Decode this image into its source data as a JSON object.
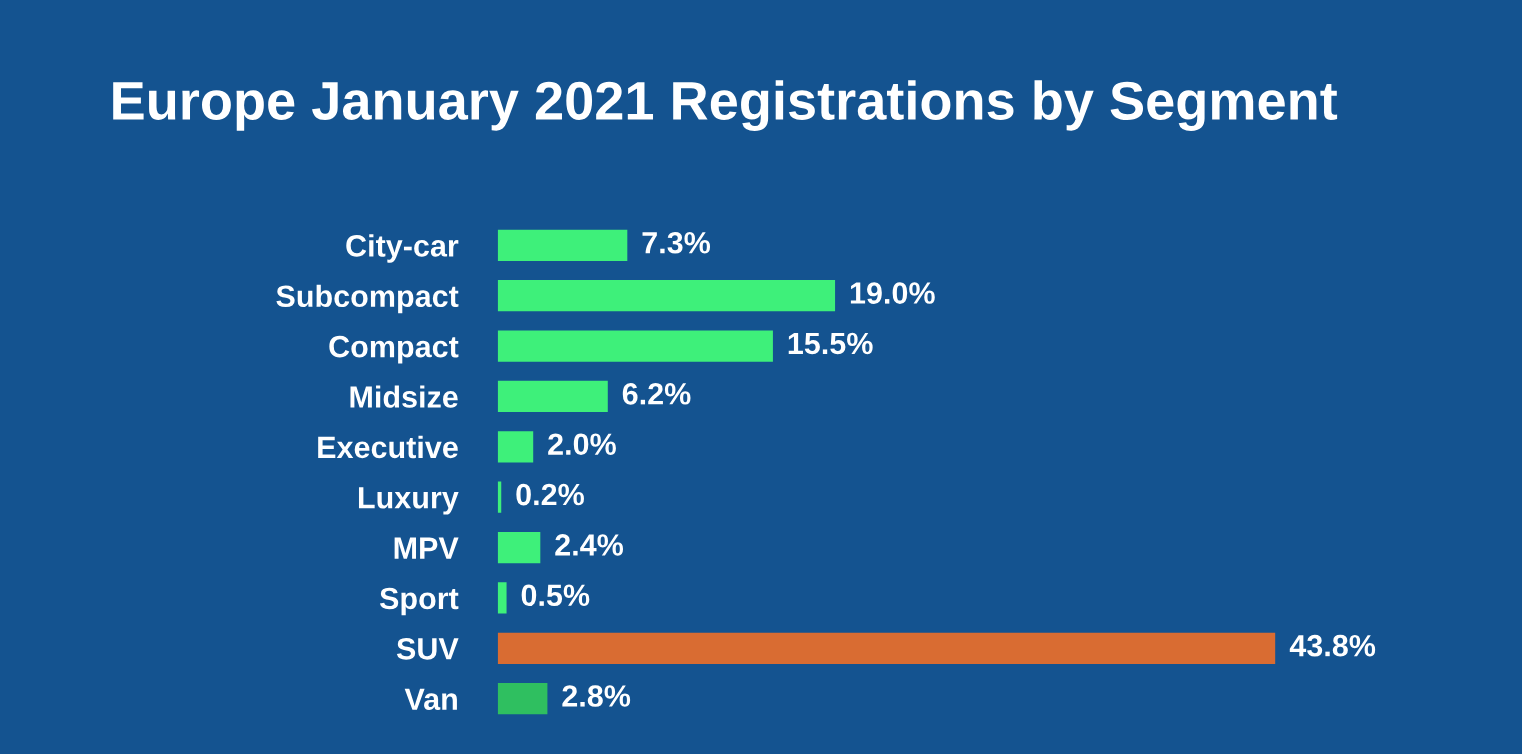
{
  "chart_data": {
    "type": "bar",
    "orientation": "horizontal",
    "title": "Europe January 2021 Registrations by Segment",
    "categories": [
      "City-car",
      "Subcompact",
      "Compact",
      "Midsize",
      "Executive",
      "Luxury",
      "MPV",
      "Sport",
      "SUV",
      "Van"
    ],
    "values": [
      7.3,
      19.0,
      15.5,
      6.2,
      2.0,
      0.2,
      2.4,
      0.5,
      43.8,
      2.8
    ],
    "value_labels": [
      "7.3%",
      "19.0%",
      "15.5%",
      "6.2%",
      "2.0%",
      "0.2%",
      "2.4%",
      "0.5%",
      "43.8%",
      "2.8%"
    ],
    "colors": [
      "#3ef07a",
      "#3ef07a",
      "#3ef07a",
      "#3ef07a",
      "#3ef07a",
      "#3ef07a",
      "#3ef07a",
      "#3ef07a",
      "#d96c32",
      "#2fbf60"
    ],
    "grid": false,
    "legend": false
  }
}
